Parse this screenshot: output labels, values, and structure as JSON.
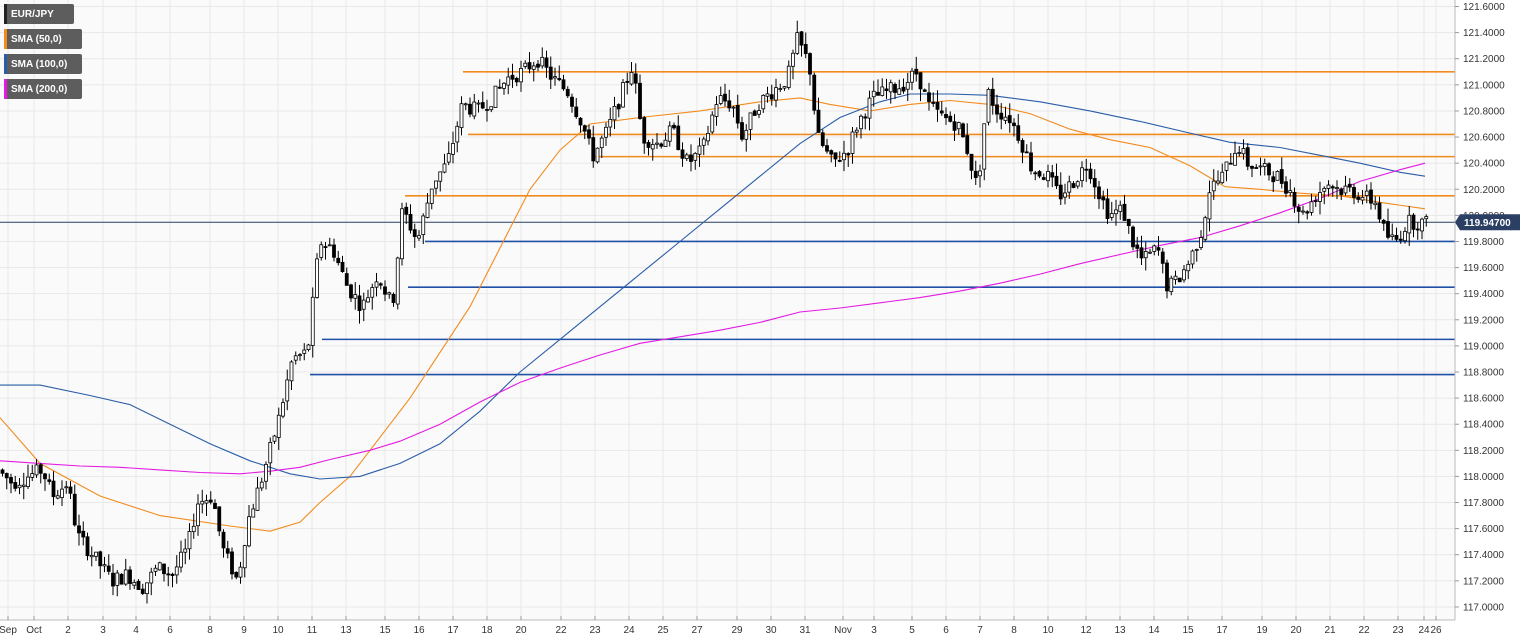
{
  "legend": [
    {
      "label": "EUR/JPY",
      "color": "#222222"
    },
    {
      "label": "SMA (50,0)",
      "color": "#f28b1d"
    },
    {
      "label": "SMA (100,0)",
      "color": "#2a5da8"
    },
    {
      "label": "SMA (200,0)",
      "color": "#e31ae3"
    }
  ],
  "current_price": "119.94700",
  "colors": {
    "background": "#ffffff",
    "plot_bg": "#fafafa",
    "grid": "#e8e8e8",
    "candle_up_fill": "#ffffff",
    "candle_down_fill": "#000000",
    "candle_outline": "#000000",
    "resistance": "#f28b1d",
    "support": "#1f4fa6",
    "current_line": "#2b3e63",
    "badge": "#2b3e63"
  },
  "chart_data": {
    "type": "candlestick",
    "ylim": [
      116.9,
      121.65
    ],
    "y_ticks": [
      "121.6000",
      "121.4000",
      "121.2000",
      "121.0000",
      "120.8000",
      "120.6000",
      "120.4000",
      "120.2000",
      "120.0000",
      "119.8000",
      "119.6000",
      "119.4000",
      "119.2000",
      "119.0000",
      "118.8000",
      "118.6000",
      "118.4000",
      "118.2000",
      "118.0000",
      "117.8000",
      "117.6000",
      "117.4000",
      "117.2000",
      "117.0000"
    ],
    "x_labels": [
      "Sep",
      "Oct",
      "2",
      "3",
      "4",
      "6",
      "8",
      "9",
      "10",
      "11",
      "13",
      "15",
      "16",
      "17",
      "18",
      "20",
      "22",
      "23",
      "24",
      "25",
      "27",
      "29",
      "30",
      "31",
      "Nov",
      "3",
      "5",
      "6",
      "7",
      "8",
      "10",
      "12",
      "13",
      "14",
      "15",
      "17",
      "19",
      "20",
      "21",
      "22",
      "23",
      "24",
      "26"
    ],
    "grid": true,
    "legend_placement": "top-left",
    "current_price": 119.947,
    "horizontal_levels": [
      {
        "kind": "resistance",
        "value": 121.1,
        "x_start_label": "17"
      },
      {
        "kind": "resistance",
        "value": 120.62,
        "x_start_label": "18"
      },
      {
        "kind": "resistance",
        "value": 120.45,
        "x_start_label": "23"
      },
      {
        "kind": "resistance",
        "value": 120.15,
        "x_start_label": "15"
      },
      {
        "kind": "support",
        "value": 119.8,
        "x_start_label": "16"
      },
      {
        "kind": "support",
        "value": 119.45,
        "x_start_label": "15"
      },
      {
        "kind": "support",
        "value": 119.05,
        "x_start_label": "11"
      },
      {
        "kind": "support",
        "value": 118.78,
        "x_start_label": "11"
      }
    ],
    "series": [
      {
        "name": "SMA (50,0)",
        "color": "#f28b1d",
        "points": [
          [
            0,
            118.45
          ],
          [
            40,
            118.1
          ],
          [
            100,
            117.85
          ],
          [
            160,
            117.7
          ],
          [
            230,
            117.62
          ],
          [
            270,
            117.58
          ],
          [
            300,
            117.65
          ],
          [
            320,
            117.8
          ],
          [
            350,
            118.0
          ],
          [
            380,
            118.3
          ],
          [
            410,
            118.6
          ],
          [
            440,
            118.95
          ],
          [
            470,
            119.3
          ],
          [
            500,
            119.75
          ],
          [
            530,
            120.2
          ],
          [
            560,
            120.5
          ],
          [
            590,
            120.7
          ],
          [
            640,
            120.75
          ],
          [
            700,
            120.8
          ],
          [
            760,
            120.87
          ],
          [
            800,
            120.9
          ],
          [
            830,
            120.85
          ],
          [
            870,
            120.8
          ],
          [
            910,
            120.85
          ],
          [
            950,
            120.88
          ],
          [
            990,
            120.85
          ],
          [
            1030,
            120.78
          ],
          [
            1070,
            120.66
          ],
          [
            1110,
            120.58
          ],
          [
            1150,
            120.52
          ],
          [
            1190,
            120.38
          ],
          [
            1225,
            120.22
          ],
          [
            1260,
            120.2
          ],
          [
            1300,
            120.17
          ],
          [
            1340,
            120.15
          ],
          [
            1380,
            120.1
          ],
          [
            1425,
            120.05
          ]
        ]
      },
      {
        "name": "SMA (100,0)",
        "color": "#2a5da8",
        "points": [
          [
            0,
            118.7
          ],
          [
            40,
            118.7
          ],
          [
            90,
            118.62
          ],
          [
            130,
            118.55
          ],
          [
            170,
            118.4
          ],
          [
            210,
            118.25
          ],
          [
            250,
            118.12
          ],
          [
            290,
            118.02
          ],
          [
            320,
            117.98
          ],
          [
            360,
            118.0
          ],
          [
            400,
            118.1
          ],
          [
            440,
            118.25
          ],
          [
            480,
            118.5
          ],
          [
            520,
            118.8
          ],
          [
            560,
            119.05
          ],
          [
            600,
            119.3
          ],
          [
            640,
            119.55
          ],
          [
            680,
            119.8
          ],
          [
            720,
            120.05
          ],
          [
            760,
            120.3
          ],
          [
            800,
            120.55
          ],
          [
            840,
            120.75
          ],
          [
            880,
            120.87
          ],
          [
            910,
            120.93
          ],
          [
            950,
            120.93
          ],
          [
            990,
            120.92
          ],
          [
            1040,
            120.87
          ],
          [
            1090,
            120.8
          ],
          [
            1140,
            120.72
          ],
          [
            1190,
            120.63
          ],
          [
            1230,
            120.56
          ],
          [
            1280,
            120.52
          ],
          [
            1320,
            120.46
          ],
          [
            1360,
            120.4
          ],
          [
            1400,
            120.33
          ],
          [
            1425,
            120.3
          ]
        ]
      },
      {
        "name": "SMA (200,0)",
        "color": "#e31ae3",
        "points": [
          [
            0,
            118.12
          ],
          [
            40,
            118.1
          ],
          [
            80,
            118.08
          ],
          [
            120,
            118.07
          ],
          [
            160,
            118.05
          ],
          [
            200,
            118.03
          ],
          [
            240,
            118.02
          ],
          [
            270,
            118.04
          ],
          [
            300,
            118.07
          ],
          [
            330,
            118.13
          ],
          [
            370,
            118.2
          ],
          [
            400,
            118.27
          ],
          [
            440,
            118.4
          ],
          [
            480,
            118.57
          ],
          [
            520,
            118.72
          ],
          [
            560,
            118.83
          ],
          [
            600,
            118.93
          ],
          [
            640,
            119.02
          ],
          [
            680,
            119.07
          ],
          [
            720,
            119.12
          ],
          [
            760,
            119.18
          ],
          [
            800,
            119.26
          ],
          [
            840,
            119.29
          ],
          [
            880,
            119.33
          ],
          [
            920,
            119.37
          ],
          [
            960,
            119.42
          ],
          [
            1000,
            119.48
          ],
          [
            1040,
            119.55
          ],
          [
            1080,
            119.63
          ],
          [
            1120,
            119.7
          ],
          [
            1160,
            119.77
          ],
          [
            1200,
            119.83
          ],
          [
            1240,
            119.92
          ],
          [
            1280,
            120.02
          ],
          [
            1320,
            120.13
          ],
          [
            1360,
            120.26
          ],
          [
            1400,
            120.35
          ],
          [
            1425,
            120.4
          ]
        ]
      }
    ],
    "candle_anchors": [
      [
        0,
        118.05
      ],
      [
        15,
        117.95
      ],
      [
        30,
        118.0
      ],
      [
        45,
        118.05
      ],
      [
        55,
        117.85
      ],
      [
        70,
        117.95
      ],
      [
        80,
        117.55
      ],
      [
        100,
        117.35
      ],
      [
        115,
        117.2
      ],
      [
        130,
        117.25
      ],
      [
        145,
        117.15
      ],
      [
        160,
        117.3
      ],
      [
        175,
        117.25
      ],
      [
        190,
        117.45
      ],
      [
        200,
        117.8
      ],
      [
        215,
        117.85
      ],
      [
        225,
        117.45
      ],
      [
        240,
        117.2
      ],
      [
        250,
        117.65
      ],
      [
        265,
        118.0
      ],
      [
        280,
        118.4
      ],
      [
        295,
        118.9
      ],
      [
        310,
        118.95
      ],
      [
        322,
        119.8
      ],
      [
        335,
        119.75
      ],
      [
        350,
        119.45
      ],
      [
        365,
        119.3
      ],
      [
        380,
        119.55
      ],
      [
        395,
        119.3
      ],
      [
        405,
        120.05
      ],
      [
        420,
        119.8
      ],
      [
        435,
        120.25
      ],
      [
        450,
        120.4
      ],
      [
        465,
        120.85
      ],
      [
        480,
        120.8
      ],
      [
        495,
        120.9
      ],
      [
        510,
        121.05
      ],
      [
        525,
        121.1
      ],
      [
        540,
        121.2
      ],
      [
        555,
        121.05
      ],
      [
        570,
        120.95
      ],
      [
        585,
        120.7
      ],
      [
        595,
        120.45
      ],
      [
        610,
        120.65
      ],
      [
        625,
        120.95
      ],
      [
        635,
        121.15
      ],
      [
        645,
        120.6
      ],
      [
        660,
        120.55
      ],
      [
        675,
        120.65
      ],
      [
        690,
        120.4
      ],
      [
        705,
        120.5
      ],
      [
        720,
        120.9
      ],
      [
        735,
        120.85
      ],
      [
        745,
        120.6
      ],
      [
        760,
        120.85
      ],
      [
        775,
        120.95
      ],
      [
        790,
        121.05
      ],
      [
        800,
        121.35
      ],
      [
        812,
        121.15
      ],
      [
        820,
        120.6
      ],
      [
        835,
        120.4
      ],
      [
        850,
        120.5
      ],
      [
        860,
        120.7
      ],
      [
        875,
        120.9
      ],
      [
        890,
        120.95
      ],
      [
        905,
        121.0
      ],
      [
        920,
        121.1
      ],
      [
        930,
        120.85
      ],
      [
        945,
        120.75
      ],
      [
        960,
        120.7
      ],
      [
        970,
        120.5
      ],
      [
        980,
        120.2
      ],
      [
        990,
        120.95
      ],
      [
        1000,
        120.8
      ],
      [
        1012,
        120.75
      ],
      [
        1022,
        120.6
      ],
      [
        1035,
        120.35
      ],
      [
        1050,
        120.3
      ],
      [
        1062,
        120.15
      ],
      [
        1075,
        120.25
      ],
      [
        1090,
        120.4
      ],
      [
        1100,
        120.2
      ],
      [
        1112,
        120.0
      ],
      [
        1125,
        120.05
      ],
      [
        1135,
        119.8
      ],
      [
        1145,
        119.65
      ],
      [
        1160,
        119.75
      ],
      [
        1170,
        119.45
      ],
      [
        1180,
        119.5
      ],
      [
        1192,
        119.65
      ],
      [
        1205,
        119.9
      ],
      [
        1212,
        120.2
      ],
      [
        1225,
        120.3
      ],
      [
        1240,
        120.55
      ],
      [
        1250,
        120.4
      ],
      [
        1265,
        120.35
      ],
      [
        1280,
        120.3
      ],
      [
        1292,
        120.2
      ],
      [
        1305,
        120.0
      ],
      [
        1318,
        120.15
      ],
      [
        1330,
        120.25
      ],
      [
        1342,
        120.2
      ],
      [
        1352,
        120.2
      ],
      [
        1365,
        120.15
      ],
      [
        1378,
        120.1
      ],
      [
        1388,
        119.85
      ],
      [
        1398,
        119.8
      ],
      [
        1410,
        119.95
      ],
      [
        1420,
        119.95
      ],
      [
        1428,
        119.94
      ]
    ]
  }
}
